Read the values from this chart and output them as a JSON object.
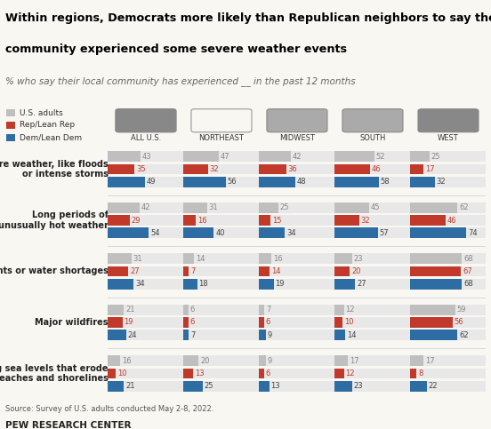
{
  "title_line1": "Within regions, Democrats more likely than Republican neighbors to say their",
  "title_line2": "community experienced some severe weather events",
  "subtitle": "% who say their local community has experienced __ in the past 12 months",
  "source": "Source: Survey of U.S. adults conducted May 2-8, 2022.",
  "footer": "PEW RESEARCH CENTER",
  "regions": [
    "ALL U.S.",
    "NORTHEAST",
    "MIDWEST",
    "SOUTH",
    "WEST"
  ],
  "categories": [
    "Severe weather, like floods\nor intense storms",
    "Long periods of\nunusually hot weather",
    "Droughts or water shortages",
    "Major wildfires",
    "Rising sea levels that erode\nbeaches and shorelines"
  ],
  "data": {
    "Severe weather, like floods\nor intense storms": {
      "ALL U.S.": [
        43,
        35,
        49
      ],
      "NORTHEAST": [
        47,
        32,
        56
      ],
      "MIDWEST": [
        42,
        36,
        48
      ],
      "SOUTH": [
        52,
        46,
        58
      ],
      "WEST": [
        25,
        17,
        32
      ]
    },
    "Long periods of\nunusually hot weather": {
      "ALL U.S.": [
        42,
        29,
        54
      ],
      "NORTHEAST": [
        31,
        16,
        40
      ],
      "MIDWEST": [
        25,
        15,
        34
      ],
      "SOUTH": [
        45,
        32,
        57
      ],
      "WEST": [
        62,
        46,
        74
      ]
    },
    "Droughts or water shortages": {
      "ALL U.S.": [
        31,
        27,
        34
      ],
      "NORTHEAST": [
        14,
        7,
        18
      ],
      "MIDWEST": [
        16,
        14,
        19
      ],
      "SOUTH": [
        23,
        20,
        27
      ],
      "WEST": [
        68,
        67,
        68
      ]
    },
    "Major wildfires": {
      "ALL U.S.": [
        21,
        19,
        24
      ],
      "NORTHEAST": [
        6,
        6,
        7
      ],
      "MIDWEST": [
        7,
        6,
        9
      ],
      "SOUTH": [
        12,
        10,
        14
      ],
      "WEST": [
        59,
        56,
        62
      ]
    },
    "Rising sea levels that erode\nbeaches and shorelines": {
      "ALL U.S.": [
        16,
        10,
        21
      ],
      "NORTHEAST": [
        20,
        13,
        25
      ],
      "MIDWEST": [
        9,
        6,
        13
      ],
      "SOUTH": [
        17,
        12,
        23
      ],
      "WEST": [
        17,
        8,
        22
      ]
    }
  },
  "colors": {
    "US adults": "#c0bfbf",
    "Rep": "#c0392b",
    "Dem": "#2e6da4",
    "bar_bg": "#e8e8e8"
  },
  "legend_labels": [
    "U.S. adults",
    "Rep/Lean Rep",
    "Dem/Lean Dem"
  ],
  "background": "#f9f7f2",
  "num_color_gray": "#888888",
  "num_color_rep": "#c0392b",
  "num_color_dem": "#444444"
}
